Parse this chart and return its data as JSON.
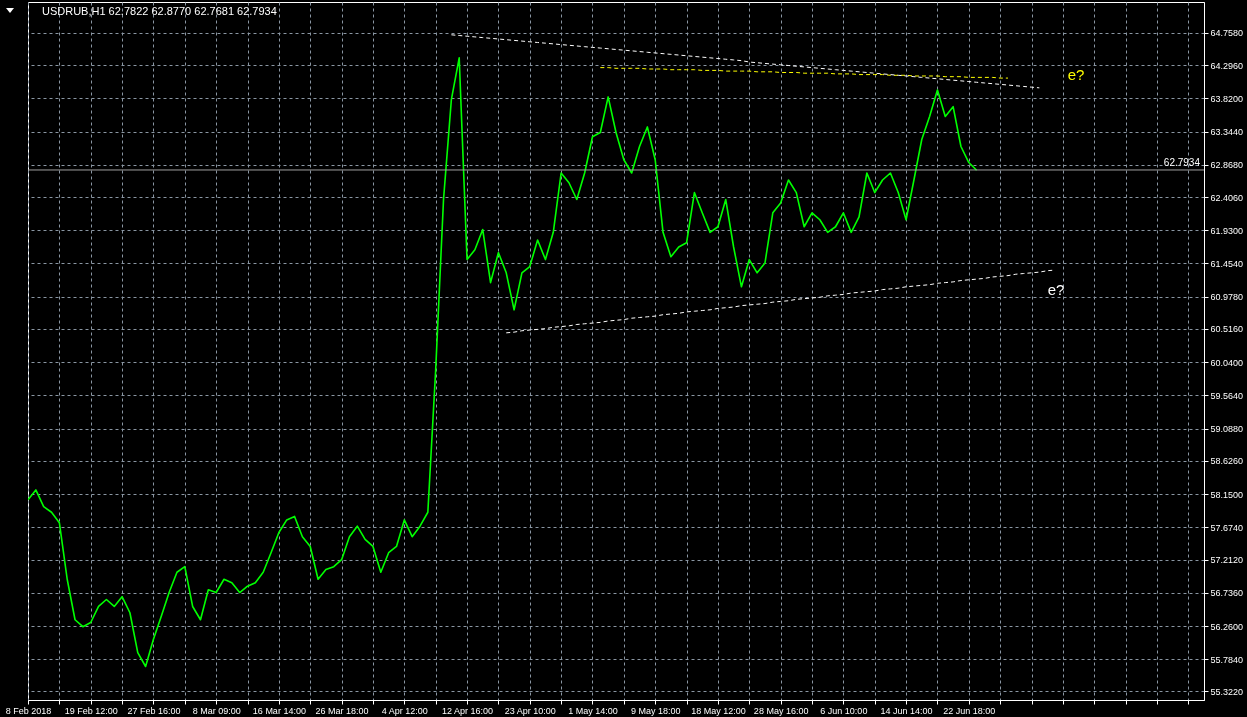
{
  "chart_data": {
    "type": "line",
    "title": "USDRUB,H1  62.7822 62.8770 62.7681 62.7934",
    "categories": [
      "8 Feb 2018",
      null,
      null,
      null,
      null,
      null,
      null,
      null,
      "19 Feb 12:00",
      null,
      null,
      null,
      null,
      null,
      null,
      null,
      "27 Feb 16:00",
      null,
      null,
      null,
      null,
      null,
      null,
      null,
      "8 Mar 09:00",
      null,
      null,
      null,
      null,
      null,
      null,
      null,
      "16 Mar 14:00",
      null,
      null,
      null,
      null,
      null,
      null,
      null,
      "26 Mar 18:00",
      null,
      null,
      null,
      null,
      null,
      null,
      null,
      "4 Apr 12:00",
      null,
      null,
      null,
      null,
      null,
      null,
      null,
      "12 Apr 16:00",
      null,
      null,
      null,
      null,
      null,
      null,
      null,
      "23 Apr 10:00",
      null,
      null,
      null,
      null,
      null,
      null,
      null,
      "1 May 14:00",
      null,
      null,
      null,
      null,
      null,
      null,
      null,
      "9 May 18:00",
      null,
      null,
      null,
      null,
      null,
      null,
      null,
      "18 May 12:00",
      null,
      null,
      null,
      null,
      null,
      null,
      null,
      "28 May 16:00",
      null,
      null,
      null,
      null,
      null,
      null,
      null,
      "6 Jun 10:00",
      null,
      null,
      null,
      null,
      null,
      null,
      null,
      "14 Jun 14:00",
      null,
      null,
      null,
      null,
      null,
      null,
      null,
      "22 Jun 18:00",
      null,
      null,
      null,
      null,
      null,
      null,
      null,
      null,
      null,
      null,
      null,
      null,
      null,
      null,
      null,
      null,
      null,
      null,
      null,
      null,
      null,
      null,
      null,
      null,
      null,
      null,
      null,
      null,
      null,
      null
    ],
    "series": [
      {
        "color": "#00ff00",
        "values": [
          58.07,
          58.21,
          57.97,
          57.89,
          57.74,
          56.93,
          56.35,
          56.25,
          56.31,
          56.54,
          56.64,
          56.54,
          56.68,
          56.45,
          55.88,
          55.68,
          56.07,
          56.4,
          56.74,
          57.03,
          57.11,
          56.54,
          56.35,
          56.78,
          56.74,
          56.93,
          56.88,
          56.74,
          56.83,
          56.88,
          57.03,
          57.31,
          57.6,
          57.78,
          57.83,
          57.54,
          57.4,
          56.93,
          57.07,
          57.11,
          57.21,
          57.54,
          57.69,
          57.5,
          57.4,
          57.03,
          57.31,
          57.4,
          57.78,
          57.54,
          57.69,
          57.89,
          59.93,
          62.37,
          63.8,
          64.4,
          61.51,
          61.65,
          61.94,
          61.18,
          61.61,
          61.32,
          60.79,
          61.32,
          61.41,
          61.79,
          61.51,
          61.9,
          62.75,
          62.61,
          62.37,
          62.75,
          63.27,
          63.33,
          63.84,
          63.33,
          62.94,
          62.75,
          63.13,
          63.41,
          62.94,
          61.9,
          61.55,
          61.69,
          61.75,
          62.47,
          62.18,
          61.9,
          61.98,
          62.37,
          61.69,
          61.12,
          61.51,
          61.32,
          61.46,
          62.18,
          62.32,
          62.65,
          62.47,
          61.98,
          62.18,
          62.08,
          61.9,
          61.98,
          62.18,
          61.9,
          62.12,
          62.75,
          62.47,
          62.65,
          62.75,
          62.47,
          62.08,
          62.65,
          63.23,
          63.56,
          63.94,
          63.56,
          63.7,
          63.13,
          62.9,
          62.79,
          null,
          null,
          null,
          null,
          null,
          null,
          null,
          null,
          null,
          null,
          null,
          null,
          null,
          null,
          null,
          null,
          null,
          null,
          null,
          null,
          null,
          null,
          null,
          null,
          null,
          null,
          null,
          null,
          null
        ]
      },
      {
        "type": "line",
        "color": "#ffff00",
        "line_style": "dashed",
        "values": [
          null,
          null,
          null,
          null,
          null,
          null,
          null,
          null,
          null,
          null,
          null,
          null,
          null,
          null,
          null,
          null,
          null,
          null,
          null,
          null,
          null,
          null,
          null,
          null,
          null,
          null,
          null,
          null,
          null,
          null,
          null,
          null,
          null,
          null,
          null,
          null,
          null,
          null,
          null,
          null,
          null,
          null,
          null,
          null,
          null,
          null,
          null,
          null,
          null,
          null,
          null,
          null,
          null,
          null,
          null,
          null,
          null,
          null,
          null,
          null,
          null,
          null,
          null,
          null,
          null,
          null,
          null,
          null,
          null,
          null,
          null,
          null,
          null,
          64.26,
          64.26,
          64.25,
          64.25,
          64.25,
          64.25,
          64.24,
          64.24,
          64.24,
          64.23,
          64.23,
          64.23,
          64.23,
          64.22,
          64.22,
          64.22,
          64.21,
          64.21,
          64.21,
          64.21,
          64.2,
          64.2,
          64.2,
          64.19,
          64.19,
          64.19,
          64.18,
          64.18,
          64.18,
          64.18,
          64.17,
          64.17,
          64.17,
          64.16,
          64.16,
          64.16,
          64.16,
          64.15,
          64.15,
          64.15,
          64.14,
          64.14,
          64.14,
          64.14,
          64.13,
          64.13,
          64.13,
          64.12,
          64.12,
          64.12,
          64.12,
          64.11,
          64.11,
          null,
          null,
          null,
          null,
          null,
          null,
          null,
          null,
          null,
          null,
          null,
          null,
          null,
          null,
          null,
          null,
          null,
          null,
          null,
          null,
          null,
          null,
          null,
          null,
          null
        ]
      },
      {
        "type": "line",
        "color": "#ffffff",
        "line_style": "dashed",
        "values": [
          null,
          null,
          null,
          null,
          null,
          null,
          null,
          null,
          null,
          null,
          null,
          null,
          null,
          null,
          null,
          null,
          null,
          null,
          null,
          null,
          null,
          null,
          null,
          null,
          null,
          null,
          null,
          null,
          null,
          null,
          null,
          null,
          null,
          null,
          null,
          null,
          null,
          null,
          null,
          null,
          null,
          null,
          null,
          null,
          null,
          null,
          null,
          null,
          null,
          null,
          null,
          null,
          null,
          null,
          64.73,
          64.72,
          64.71,
          64.7,
          64.69,
          64.68,
          64.67,
          64.66,
          64.65,
          64.64,
          64.63,
          64.62,
          64.61,
          64.6,
          64.59,
          64.58,
          64.57,
          64.56,
          64.55,
          64.54,
          64.53,
          64.52,
          64.51,
          64.5,
          64.49,
          64.48,
          64.47,
          64.46,
          64.45,
          64.44,
          64.43,
          64.42,
          64.41,
          64.4,
          64.39,
          64.38,
          64.37,
          64.36,
          64.34,
          64.33,
          64.32,
          64.31,
          64.3,
          64.29,
          64.28,
          64.27,
          64.26,
          64.25,
          64.24,
          64.23,
          64.22,
          64.21,
          64.2,
          64.19,
          64.18,
          64.17,
          64.16,
          64.15,
          64.14,
          64.13,
          64.12,
          64.11,
          64.1,
          64.09,
          64.08,
          64.07,
          64.06,
          64.05,
          64.04,
          64.03,
          64.02,
          64.01,
          64.0,
          63.99,
          63.98,
          63.97,
          null,
          null,
          null,
          null,
          null,
          null,
          null,
          null,
          null,
          null,
          null,
          null,
          null,
          null,
          null,
          null,
          null,
          null,
          null,
          null,
          null
        ]
      },
      {
        "type": "line",
        "color": "#ffffff",
        "line_style": "dashed",
        "values": [
          null,
          null,
          null,
          null,
          null,
          null,
          null,
          null,
          null,
          null,
          null,
          null,
          null,
          null,
          null,
          null,
          null,
          null,
          null,
          null,
          null,
          null,
          null,
          null,
          null,
          null,
          null,
          null,
          null,
          null,
          null,
          null,
          null,
          null,
          null,
          null,
          null,
          null,
          null,
          null,
          null,
          null,
          null,
          null,
          null,
          null,
          null,
          null,
          null,
          null,
          null,
          null,
          null,
          null,
          null,
          null,
          null,
          null,
          null,
          null,
          null,
          60.46,
          60.47,
          60.49,
          60.5,
          60.51,
          60.52,
          60.54,
          60.55,
          60.56,
          60.58,
          60.59,
          60.6,
          60.61,
          60.63,
          60.64,
          60.65,
          60.67,
          60.68,
          60.69,
          60.7,
          60.72,
          60.73,
          60.74,
          60.76,
          60.77,
          60.78,
          60.79,
          60.81,
          60.82,
          60.83,
          60.85,
          60.86,
          60.87,
          60.88,
          60.9,
          60.91,
          60.92,
          60.94,
          60.95,
          60.96,
          60.97,
          60.99,
          61.0,
          61.01,
          61.03,
          61.04,
          61.05,
          61.06,
          61.08,
          61.09,
          61.1,
          61.12,
          61.13,
          61.14,
          61.15,
          61.17,
          61.18,
          61.19,
          61.21,
          61.22,
          61.23,
          61.24,
          61.26,
          61.27,
          61.28,
          61.3,
          61.31,
          61.32,
          61.33,
          61.35,
          61.36,
          null,
          null,
          null,
          null,
          null,
          null,
          null,
          null,
          null,
          null,
          null,
          null,
          null,
          null,
          null,
          null,
          null,
          null,
          null
        ]
      }
    ],
    "annotations": [
      "e?",
      "e?"
    ],
    "ylim": [
      55.2,
      65.2
    ],
    "yticks": [
      {
        "value": 64.758,
        "label": "64.7580"
      },
      {
        "value": 64.296,
        "label": "64.2960"
      },
      {
        "value": 63.82,
        "label": "63.8200"
      },
      {
        "value": 63.344,
        "label": "63.3440"
      },
      {
        "value": 62.868,
        "label": "62.8680"
      },
      {
        "value": 62.406,
        "label": "62.4060"
      },
      {
        "value": 61.93,
        "label": "61.9300"
      },
      {
        "value": 61.454,
        "label": "61.4540"
      },
      {
        "value": 60.978,
        "label": "60.9780"
      },
      {
        "value": 60.516,
        "label": "60.5160"
      },
      {
        "value": 60.04,
        "label": "60.0400"
      },
      {
        "value": 59.564,
        "label": "59.5640"
      },
      {
        "value": 59.088,
        "label": "59.0880"
      },
      {
        "value": 58.626,
        "label": "58.6260"
      },
      {
        "value": 58.15,
        "label": "58.1500"
      },
      {
        "value": 57.674,
        "label": "57.6740"
      },
      {
        "value": 57.212,
        "label": "57.2120"
      },
      {
        "value": 56.736,
        "label": "56.7360"
      },
      {
        "value": 56.26,
        "label": "56.2600"
      },
      {
        "value": 55.784,
        "label": "55.7840"
      },
      {
        "value": 55.322,
        "label": "55.3220"
      }
    ],
    "ref_lines": [
      {
        "axis": "y",
        "value": 62.7934,
        "label": "62.7934",
        "color": "#a0a0a0"
      }
    ],
    "grid": true
  }
}
